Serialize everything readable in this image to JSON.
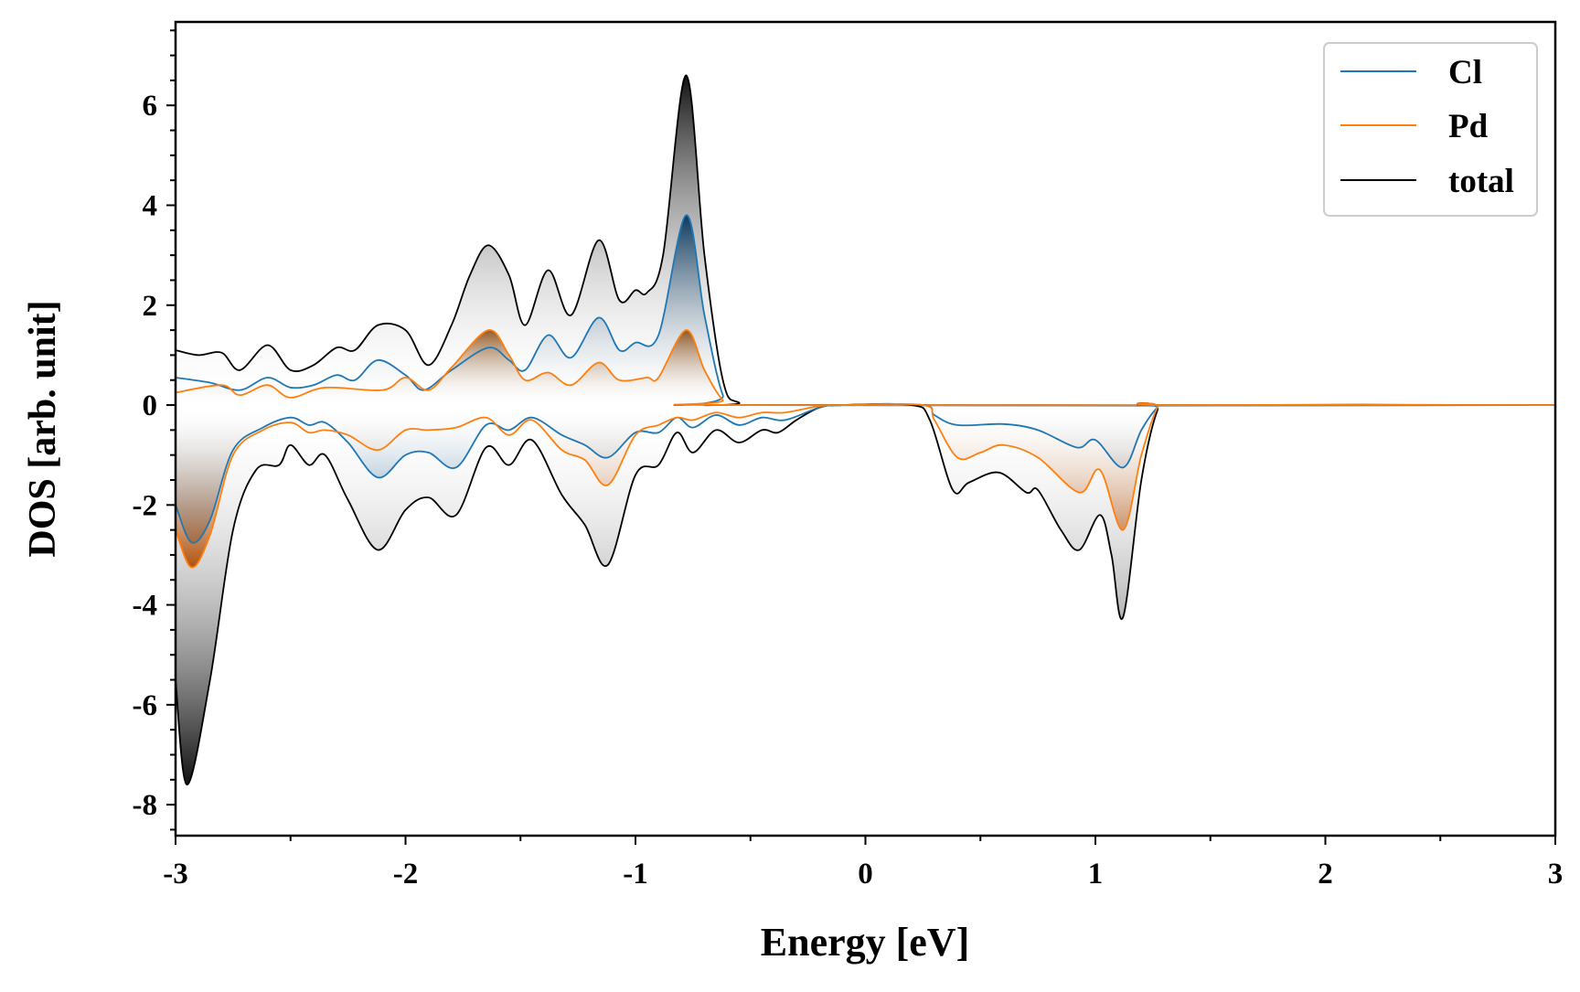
{
  "chart_data": {
    "type": "area",
    "title": "",
    "xlabel": "Energy [eV]",
    "ylabel": "DOS [arb. unit]",
    "xlim": [
      -3,
      3
    ],
    "ylim": [
      -8.62,
      7.67
    ],
    "xticks": [
      -3,
      -2,
      -1,
      0,
      1,
      2,
      3
    ],
    "xtick_labels": [
      "-3",
      "-2",
      "-1",
      "0",
      "1",
      "2",
      "3"
    ],
    "yticks": [
      -8,
      -6,
      -4,
      -2,
      0,
      2,
      4,
      6
    ],
    "ytick_labels": [
      "-8",
      "-6",
      "-4",
      "-2",
      "0",
      "2",
      "4",
      "6"
    ],
    "legend_position": "top-right",
    "legend": [
      {
        "label": "Cl",
        "color": "#1f77b4"
      },
      {
        "label": "Pd",
        "color": "#ff7f0e"
      },
      {
        "label": "total",
        "color": "#000000"
      }
    ],
    "series": [
      {
        "name": "total",
        "spin": "up",
        "color": "#000000",
        "x": [
          -3,
          -2.9,
          -2.8,
          -2.72,
          -2.6,
          -2.5,
          -2.4,
          -2.3,
          -2.22,
          -2.12,
          -2.0,
          -1.9,
          -1.8,
          -1.72,
          -1.64,
          -1.55,
          -1.48,
          -1.38,
          -1.28,
          -1.16,
          -1.07,
          -1.0,
          -0.95,
          -0.88,
          -0.78,
          -0.7,
          -0.62,
          -0.55,
          -0.4,
          3
        ],
        "y": [
          1.1,
          1.0,
          1.05,
          0.7,
          1.2,
          0.7,
          0.8,
          1.15,
          1.1,
          1.6,
          1.5,
          0.8,
          1.6,
          2.6,
          3.2,
          2.6,
          1.6,
          2.7,
          1.8,
          3.3,
          2.1,
          2.3,
          2.25,
          3.0,
          6.6,
          3.0,
          0.5,
          0.05,
          0,
          0
        ]
      },
      {
        "name": "Cl",
        "spin": "up",
        "color": "#1f77b4",
        "x": [
          -3,
          -2.85,
          -2.72,
          -2.6,
          -2.5,
          -2.4,
          -2.3,
          -2.22,
          -2.12,
          -2.0,
          -1.92,
          -1.8,
          -1.64,
          -1.55,
          -1.48,
          -1.38,
          -1.28,
          -1.16,
          -1.07,
          -1.0,
          -0.9,
          -0.78,
          -0.7,
          -0.62,
          -0.55,
          3
        ],
        "y": [
          0.55,
          0.45,
          0.3,
          0.55,
          0.35,
          0.4,
          0.6,
          0.5,
          0.9,
          0.6,
          0.3,
          0.7,
          1.15,
          0.9,
          0.7,
          1.4,
          0.95,
          1.75,
          1.1,
          1.25,
          1.4,
          3.8,
          1.8,
          0.2,
          0,
          0
        ]
      },
      {
        "name": "Pd",
        "spin": "up",
        "color": "#ff7f0e",
        "x": [
          -3,
          -2.8,
          -2.72,
          -2.6,
          -2.5,
          -2.35,
          -2.1,
          -2.0,
          -1.9,
          -1.8,
          -1.64,
          -1.55,
          -1.48,
          -1.38,
          -1.28,
          -1.16,
          -1.07,
          -0.95,
          -0.9,
          -0.78,
          -0.7,
          -0.62,
          -0.55,
          3
        ],
        "y": [
          0.25,
          0.4,
          0.2,
          0.4,
          0.15,
          0.35,
          0.3,
          0.55,
          0.3,
          0.75,
          1.5,
          1.0,
          0.5,
          0.65,
          0.4,
          0.85,
          0.5,
          0.55,
          0.55,
          1.5,
          0.7,
          0.1,
          0,
          0
        ]
      },
      {
        "name": "total",
        "spin": "down",
        "color": "#000000",
        "x": [
          -3,
          -2.95,
          -2.85,
          -2.75,
          -2.65,
          -2.55,
          -2.5,
          -2.42,
          -2.35,
          -2.25,
          -2.12,
          -2.0,
          -1.9,
          -1.78,
          -1.65,
          -1.55,
          -1.45,
          -1.32,
          -1.22,
          -1.12,
          -1.0,
          -0.9,
          -0.82,
          -0.75,
          -0.65,
          -0.55,
          -0.45,
          -0.38,
          -0.3,
          -0.2,
          -0.1,
          0.2,
          0.28,
          0.38,
          0.45,
          0.58,
          0.7,
          0.75,
          0.85,
          0.93,
          1.02,
          1.07,
          1.12,
          1.2,
          1.27,
          1.32,
          3
        ],
        "y": [
          -5.5,
          -7.6,
          -5.5,
          -2.5,
          -1.3,
          -1.2,
          -0.8,
          -1.2,
          -1.0,
          -1.9,
          -2.9,
          -2.1,
          -1.85,
          -2.2,
          -0.85,
          -1.2,
          -0.7,
          -1.8,
          -2.4,
          -3.2,
          -1.4,
          -1.2,
          -0.55,
          -0.95,
          -0.5,
          -0.75,
          -0.5,
          -0.55,
          -0.3,
          -0.05,
          0,
          0,
          -0.3,
          -1.7,
          -1.55,
          -1.35,
          -1.75,
          -1.7,
          -2.5,
          -2.9,
          -2.2,
          -3.0,
          -4.25,
          -1.5,
          -0.1,
          0,
          0
        ]
      },
      {
        "name": "Cl",
        "spin": "down",
        "color": "#1f77b4",
        "x": [
          -3,
          -2.93,
          -2.85,
          -2.75,
          -2.62,
          -2.5,
          -2.42,
          -2.35,
          -2.25,
          -2.12,
          -2.0,
          -1.9,
          -1.78,
          -1.65,
          -1.55,
          -1.45,
          -1.32,
          -1.22,
          -1.12,
          -1.0,
          -0.9,
          -0.82,
          -0.75,
          -0.65,
          -0.55,
          -0.45,
          -0.35,
          -0.2,
          -0.1,
          0.25,
          0.3,
          0.4,
          0.6,
          0.75,
          0.92,
          1.0,
          1.12,
          1.2,
          1.27,
          1.32,
          3
        ],
        "y": [
          -2.0,
          -2.75,
          -2.3,
          -0.9,
          -0.45,
          -0.25,
          -0.4,
          -0.35,
          -0.75,
          -1.45,
          -1.0,
          -0.95,
          -1.25,
          -0.4,
          -0.5,
          -0.25,
          -0.6,
          -0.8,
          -1.05,
          -0.55,
          -0.55,
          -0.25,
          -0.45,
          -0.2,
          -0.4,
          -0.25,
          -0.3,
          -0.05,
          0,
          0,
          -0.2,
          -0.4,
          -0.38,
          -0.5,
          -0.85,
          -0.7,
          -1.25,
          -0.5,
          -0.05,
          0,
          0
        ]
      },
      {
        "name": "Pd",
        "spin": "down",
        "color": "#ff7f0e",
        "x": [
          -3,
          -2.93,
          -2.85,
          -2.75,
          -2.62,
          -2.5,
          -2.42,
          -2.35,
          -2.25,
          -2.12,
          -2.0,
          -1.9,
          -1.78,
          -1.65,
          -1.55,
          -1.45,
          -1.32,
          -1.22,
          -1.12,
          -1.0,
          -0.9,
          -0.82,
          -0.75,
          -0.65,
          -0.55,
          -0.45,
          -0.35,
          -0.2,
          -0.1,
          0.25,
          0.3,
          0.4,
          0.5,
          0.6,
          0.75,
          0.93,
          1.02,
          1.12,
          1.2,
          1.27,
          1.32,
          3
        ],
        "y": [
          -2.5,
          -3.25,
          -2.6,
          -1.0,
          -0.5,
          -0.35,
          -0.55,
          -0.5,
          -0.6,
          -0.9,
          -0.5,
          -0.5,
          -0.45,
          -0.25,
          -0.6,
          -0.3,
          -0.9,
          -1.1,
          -1.6,
          -0.6,
          -0.4,
          -0.25,
          -0.3,
          -0.15,
          -0.25,
          -0.15,
          -0.15,
          -0.02,
          0,
          0,
          -0.3,
          -1.05,
          -0.95,
          -0.8,
          -1.05,
          -1.75,
          -1.3,
          -2.5,
          -1.0,
          -0.05,
          0,
          0
        ]
      }
    ]
  }
}
